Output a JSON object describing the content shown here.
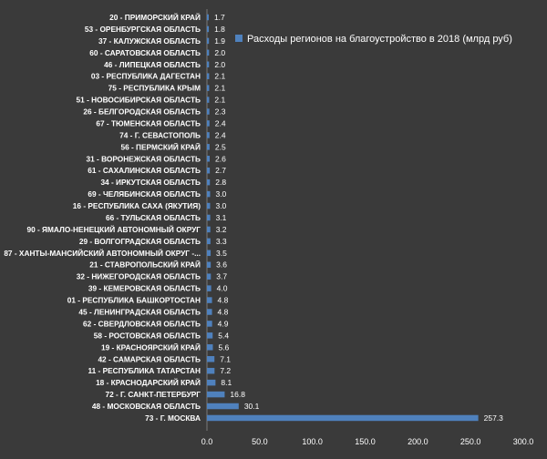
{
  "colors": {
    "background": "#3a3a3a",
    "bar": "#4f81bd",
    "text": "#ffffff",
    "axis": "#7a7a7a"
  },
  "chart_data": {
    "type": "bar",
    "orientation": "horizontal",
    "categories": [
      "20 - ПРИМОРСКИЙ КРАЙ",
      "53 - ОРЕНБУРГСКАЯ ОБЛАСТЬ",
      "37 - КАЛУЖСКАЯ ОБЛАСТЬ",
      "60 - САРАТОВСКАЯ ОБЛАСТЬ",
      "46 - ЛИПЕЦКАЯ ОБЛАСТЬ",
      "03 - РЕСПУБЛИКА ДАГЕСТАН",
      "75 - РЕСПУБЛИКА КРЫМ",
      "51 - НОВОСИБИРСКАЯ ОБЛАСТЬ",
      "26 - БЕЛГОРОДСКАЯ ОБЛАСТЬ",
      "67 - ТЮМЕНСКАЯ ОБЛАСТЬ",
      "74 - Г. СЕВАСТОПОЛЬ",
      "56 - ПЕРМСКИЙ КРАЙ",
      "31 - ВОРОНЕЖСКАЯ ОБЛАСТЬ",
      "61 - САХАЛИНСКАЯ ОБЛАСТЬ",
      "34 - ИРКУТСКАЯ ОБЛАСТЬ",
      "69 - ЧЕЛЯБИНСКАЯ ОБЛАСТЬ",
      "16 - РЕСПУБЛИКА САХА (ЯКУТИЯ)",
      "66 - ТУЛЬСКАЯ ОБЛАСТЬ",
      "90 - ЯМАЛО-НЕНЕЦКИЙ АВТОНОМНЫЙ ОКРУГ",
      "29 - ВОЛГОГРАДСКАЯ ОБЛАСТЬ",
      "87 - ХАНТЫ-МАНСИЙСКИЙ АВТОНОМНЫЙ ОКРУГ -...",
      "21 - СТАВРОПОЛЬСКИЙ КРАЙ",
      "32 - НИЖЕГОРОДСКАЯ ОБЛАСТЬ",
      "39 - КЕМЕРОВСКАЯ ОБЛАСТЬ",
      "01 - РЕСПУБЛИКА БАШКОРТОСТАН",
      "45 - ЛЕНИНГРАДСКАЯ ОБЛАСТЬ",
      "62 - СВЕРДЛОВСКАЯ ОБЛАСТЬ",
      "58 - РОСТОВСКАЯ ОБЛАСТЬ",
      "19 - КРАСНОЯРСКИЙ КРАЙ",
      "42 - САМАРСКАЯ ОБЛАСТЬ",
      "11 - РЕСПУБЛИКА ТАТАРСТАН",
      "18 - КРАСНОДАРСКИЙ КРАЙ",
      "72 - Г. САНКТ-ПЕТЕРБУРГ",
      "48 - МОСКОВСКАЯ ОБЛАСТЬ",
      "73 - Г. МОСКВА"
    ],
    "series": [
      {
        "name": "Расходы регионов на благоустройство в 2018 (млрд руб)",
        "values": [
          1.7,
          1.8,
          1.9,
          2.0,
          2.0,
          2.1,
          2.1,
          2.1,
          2.3,
          2.4,
          2.4,
          2.5,
          2.6,
          2.7,
          2.8,
          3.0,
          3.0,
          3.1,
          3.2,
          3.3,
          3.5,
          3.6,
          3.7,
          4.0,
          4.8,
          4.8,
          4.9,
          5.4,
          5.6,
          7.1,
          7.2,
          8.1,
          16.8,
          30.1,
          257.3
        ],
        "labels": [
          "1.7",
          "1.8",
          "1.9",
          "2.0",
          "2.0",
          "2.1",
          "2.1",
          "2.1",
          "2.3",
          "2.4",
          "2.4",
          "2.5",
          "2.6",
          "2.7",
          "2.8",
          "3.0",
          "3.0",
          "3.1",
          "3.2",
          "3.3",
          "3.5",
          "3.6",
          "3.7",
          "4.0",
          "4.8",
          "4.8",
          "4.9",
          "5.4",
          "5.6",
          "7.1",
          "7.2",
          "8.1",
          "16.8",
          "30.1",
          "257.3"
        ]
      }
    ],
    "xlim": [
      0,
      300
    ],
    "xticks": [
      0,
      50,
      100,
      150,
      200,
      250,
      300
    ],
    "xtick_labels": [
      "0.0",
      "50.0",
      "100.0",
      "150.0",
      "200.0",
      "250.0",
      "300.0"
    ],
    "grid": false,
    "legend": "top-right"
  }
}
